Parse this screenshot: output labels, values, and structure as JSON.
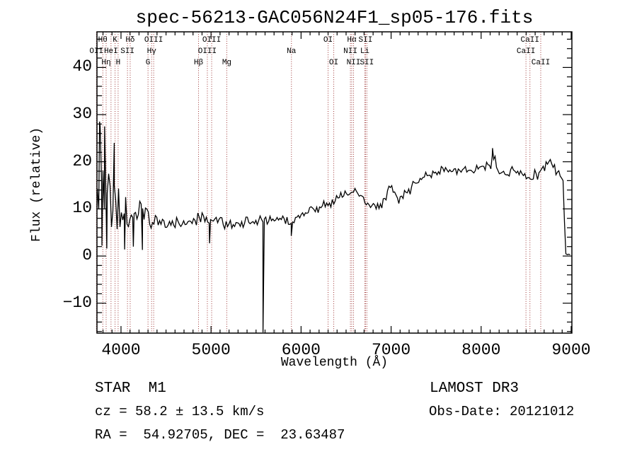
{
  "chart_data": {
    "type": "line",
    "title": "spec-56213-GAC056N24F1_sp05-176.fits",
    "xlabel": "Wavelength (Å)",
    "ylabel": "Flux (relative)",
    "xlim": [
      3733,
      9008
    ],
    "ylim": [
      -16.35,
      47.56
    ],
    "x_ticks": [
      4000,
      5000,
      6000,
      7000,
      8000,
      9000
    ],
    "y_ticks": [
      -10,
      0,
      10,
      20,
      30,
      40
    ],
    "x_minor_step": 100,
    "y_minor_step": 2,
    "grid": false,
    "frame_color": "#000000",
    "curve_color": "#000000",
    "line_marker_color": "#9e3636",
    "noise_seed": 20121012,
    "spectral_lines": [
      {
        "wavelength": 3727,
        "label": "OII",
        "row": 2
      },
      {
        "wavelength": 3798,
        "label": "Hθ",
        "row": 1
      },
      {
        "wavelength": 3835,
        "label": "Hη",
        "row": 3
      },
      {
        "wavelength": 3889,
        "label": "HeI",
        "row": 2
      },
      {
        "wavelength": 3934,
        "label": "K",
        "row": 1
      },
      {
        "wavelength": 3968,
        "label": "H",
        "row": 3
      },
      {
        "wavelength": 4072,
        "label": "SII",
        "row": 2
      },
      {
        "wavelength": 4102,
        "label": "Hδ",
        "row": 1
      },
      {
        "wavelength": 4300,
        "label": "G",
        "row": 3
      },
      {
        "wavelength": 4340,
        "label": "Hγ",
        "row": 2
      },
      {
        "wavelength": 4363,
        "label": "OIII",
        "row": 1
      },
      {
        "wavelength": 4861,
        "label": "Hβ",
        "row": 3
      },
      {
        "wavelength": 4959,
        "label": "OIII",
        "row": 2
      },
      {
        "wavelength": 5007,
        "label": "OIII",
        "row": 1
      },
      {
        "wavelength": 5175,
        "label": "Mg",
        "row": 3
      },
      {
        "wavelength": 5893,
        "label": "Na",
        "row": 2
      },
      {
        "wavelength": 6300,
        "label": "OI",
        "row": 1
      },
      {
        "wavelength": 6363,
        "label": "OI",
        "row": 3
      },
      {
        "wavelength": 6548,
        "label": "NII",
        "row": 2
      },
      {
        "wavelength": 6563,
        "label": "Hα",
        "row": 1
      },
      {
        "wavelength": 6583,
        "label": "NII",
        "row": 3
      },
      {
        "wavelength": 6708,
        "label": "Li",
        "row": 2
      },
      {
        "wavelength": 6716,
        "label": "SII",
        "row": 1
      },
      {
        "wavelength": 6731,
        "label": "SII",
        "row": 3
      },
      {
        "wavelength": 8498,
        "label": "CaII",
        "row": 2
      },
      {
        "wavelength": 8542,
        "label": "CaII",
        "row": 1
      },
      {
        "wavelength": 8662,
        "label": "CaII",
        "row": 3
      }
    ],
    "envelope": [
      [
        3733,
        14,
        12
      ],
      [
        3770,
        16,
        13
      ],
      [
        3810,
        15,
        13
      ],
      [
        3860,
        13,
        11
      ],
      [
        3910,
        12,
        9
      ],
      [
        3955,
        10.5,
        7
      ],
      [
        4005,
        10,
        5.5
      ],
      [
        4060,
        9.5,
        4.8
      ],
      [
        4150,
        9.5,
        4.5
      ],
      [
        4250,
        8.8,
        3.5
      ],
      [
        4350,
        8,
        2.8
      ],
      [
        4450,
        7.4,
        2.1
      ],
      [
        4550,
        7.1,
        1.8
      ],
      [
        4650,
        7,
        1.7
      ],
      [
        4750,
        7.1,
        1.7
      ],
      [
        4850,
        7.9,
        1.8
      ],
      [
        4920,
        7.6,
        1.6
      ],
      [
        5000,
        7.3,
        1.5
      ],
      [
        5100,
        7.1,
        1.5
      ],
      [
        5175,
        6.5,
        1.4
      ],
      [
        5250,
        6.8,
        1.4
      ],
      [
        5350,
        7,
        1.4
      ],
      [
        5450,
        7.1,
        1.4
      ],
      [
        5570,
        7.3,
        1.3
      ],
      [
        5650,
        7.5,
        1.3
      ],
      [
        5750,
        7.8,
        1.3
      ],
      [
        5850,
        7.6,
        1.3
      ],
      [
        5893,
        7,
        1.2
      ],
      [
        5955,
        7.9,
        1.3
      ],
      [
        6055,
        8.9,
        1.3
      ],
      [
        6155,
        9.9,
        1.3
      ],
      [
        6255,
        10.9,
        1.4
      ],
      [
        6355,
        11.9,
        1.4
      ],
      [
        6455,
        12.9,
        1.4
      ],
      [
        6530,
        14,
        1.5
      ],
      [
        6575,
        14.3,
        1.5
      ],
      [
        6635,
        13.3,
        1.4
      ],
      [
        6705,
        11.5,
        1.3
      ],
      [
        6785,
        10.2,
        1.2
      ],
      [
        6865,
        10.4,
        1.2
      ],
      [
        6940,
        12.3,
        1.5
      ],
      [
        6990,
        15.3,
        1.7
      ],
      [
        7030,
        13,
        1.5
      ],
      [
        7085,
        11.9,
        1.4
      ],
      [
        7185,
        13.6,
        1.4
      ],
      [
        7285,
        15.9,
        1.4
      ],
      [
        7385,
        16.9,
        1.4
      ],
      [
        7485,
        17.7,
        1.4
      ],
      [
        7585,
        18,
        1.4
      ],
      [
        7685,
        18.2,
        1.5
      ],
      [
        7785,
        18.5,
        1.5
      ],
      [
        7885,
        18.2,
        1.5
      ],
      [
        7985,
        18.4,
        1.5
      ],
      [
        8085,
        19.2,
        1.7
      ],
      [
        8126,
        20.5,
        1.9
      ],
      [
        8185,
        18.8,
        1.7
      ],
      [
        8285,
        17.7,
        1.6
      ],
      [
        8385,
        18.1,
        1.6
      ],
      [
        8485,
        17.3,
        1.8
      ],
      [
        8565,
        16.7,
        1.8
      ],
      [
        8665,
        17.9,
        1.7
      ],
      [
        8740,
        19.9,
        1.6
      ],
      [
        8805,
        18.6,
        1.5
      ],
      [
        8875,
        17.4,
        1.4
      ],
      [
        8915,
        16,
        1.1
      ],
      [
        8925,
        8,
        0.4
      ],
      [
        8935,
        0.35,
        0.15
      ],
      [
        9008,
        0.3,
        0.1
      ]
    ],
    "spikes": [
      [
        3762,
        28.5
      ],
      [
        3788,
        2.2
      ],
      [
        3818,
        27.5
      ],
      [
        3842,
        1.6
      ],
      [
        3925,
        24
      ],
      [
        4040,
        1.4
      ],
      [
        4137,
        2
      ],
      [
        4238,
        1.3
      ],
      [
        4984,
        2.7
      ],
      [
        5577,
        -16.2
      ],
      [
        5891,
        4.3
      ],
      [
        8127,
        22.9
      ]
    ]
  },
  "footer": {
    "class_left": "STAR  M1",
    "survey_right": "LAMOST DR3",
    "cz_left": "cz = 58.2 ± 13.5 km/s",
    "obsdate_right": "Obs-Date: 20121012",
    "radec_left": "RA =  54.92705, DEC =  23.63487"
  }
}
